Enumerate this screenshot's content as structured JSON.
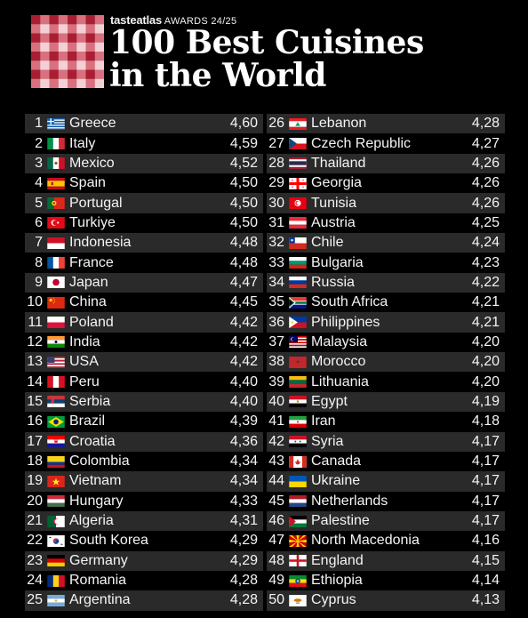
{
  "header": {
    "brand": "tasteatlas",
    "awards": "AWARDS 24/25",
    "title_line1": "100 Best Cuisines",
    "title_line2": "in the World"
  },
  "colors": {
    "background": "#000000",
    "logo_red": "#c0283a",
    "logo_pink": "#f1c2c8",
    "row_shade": "#2a2a2a"
  },
  "rankings": [
    {
      "rank": "1",
      "country": "Greece",
      "score": "4,60",
      "flag": "greece"
    },
    {
      "rank": "2",
      "country": "Italy",
      "score": "4,59",
      "flag": "italy"
    },
    {
      "rank": "3",
      "country": "Mexico",
      "score": "4,52",
      "flag": "mexico"
    },
    {
      "rank": "4",
      "country": "Spain",
      "score": "4,50",
      "flag": "spain"
    },
    {
      "rank": "5",
      "country": "Portugal",
      "score": "4,50",
      "flag": "portugal"
    },
    {
      "rank": "6",
      "country": "Turkiye",
      "score": "4,50",
      "flag": "turkiye"
    },
    {
      "rank": "7",
      "country": "Indonesia",
      "score": "4,48",
      "flag": "indonesia"
    },
    {
      "rank": "8",
      "country": "France",
      "score": "4,48",
      "flag": "france"
    },
    {
      "rank": "9",
      "country": "Japan",
      "score": "4,47",
      "flag": "japan"
    },
    {
      "rank": "10",
      "country": "China",
      "score": "4,45",
      "flag": "china"
    },
    {
      "rank": "11",
      "country": "Poland",
      "score": "4,42",
      "flag": "poland"
    },
    {
      "rank": "12",
      "country": "India",
      "score": "4,42",
      "flag": "india"
    },
    {
      "rank": "13",
      "country": "USA",
      "score": "4,42",
      "flag": "usa"
    },
    {
      "rank": "14",
      "country": "Peru",
      "score": "4,40",
      "flag": "peru"
    },
    {
      "rank": "15",
      "country": "Serbia",
      "score": "4,40",
      "flag": "serbia"
    },
    {
      "rank": "16",
      "country": "Brazil",
      "score": "4,39",
      "flag": "brazil"
    },
    {
      "rank": "17",
      "country": "Croatia",
      "score": "4,36",
      "flag": "croatia"
    },
    {
      "rank": "18",
      "country": "Colombia",
      "score": "4,34",
      "flag": "colombia"
    },
    {
      "rank": "19",
      "country": "Vietnam",
      "score": "4,34",
      "flag": "vietnam"
    },
    {
      "rank": "20",
      "country": "Hungary",
      "score": "4,33",
      "flag": "hungary"
    },
    {
      "rank": "21",
      "country": "Algeria",
      "score": "4,31",
      "flag": "algeria"
    },
    {
      "rank": "22",
      "country": "South Korea",
      "score": "4,29",
      "flag": "south-korea"
    },
    {
      "rank": "23",
      "country": "Germany",
      "score": "4,29",
      "flag": "germany"
    },
    {
      "rank": "24",
      "country": "Romania",
      "score": "4,28",
      "flag": "romania"
    },
    {
      "rank": "25",
      "country": "Argentina",
      "score": "4,28",
      "flag": "argentina"
    },
    {
      "rank": "26",
      "country": "Lebanon",
      "score": "4,28",
      "flag": "lebanon"
    },
    {
      "rank": "27",
      "country": "Czech Republic",
      "score": "4,27",
      "flag": "czech-republic"
    },
    {
      "rank": "28",
      "country": "Thailand",
      "score": "4,26",
      "flag": "thailand"
    },
    {
      "rank": "29",
      "country": "Georgia",
      "score": "4,26",
      "flag": "georgia"
    },
    {
      "rank": "30",
      "country": "Tunisia",
      "score": "4,26",
      "flag": "tunisia"
    },
    {
      "rank": "31",
      "country": "Austria",
      "score": "4,25",
      "flag": "austria"
    },
    {
      "rank": "32",
      "country": "Chile",
      "score": "4,24",
      "flag": "chile"
    },
    {
      "rank": "33",
      "country": "Bulgaria",
      "score": "4,23",
      "flag": "bulgaria"
    },
    {
      "rank": "34",
      "country": "Russia",
      "score": "4,22",
      "flag": "russia"
    },
    {
      "rank": "35",
      "country": "South Africa",
      "score": "4,21",
      "flag": "south-africa"
    },
    {
      "rank": "36",
      "country": "Philippines",
      "score": "4,21",
      "flag": "philippines"
    },
    {
      "rank": "37",
      "country": "Malaysia",
      "score": "4,20",
      "flag": "malaysia"
    },
    {
      "rank": "38",
      "country": "Morocco",
      "score": "4,20",
      "flag": "morocco"
    },
    {
      "rank": "39",
      "country": "Lithuania",
      "score": "4,20",
      "flag": "lithuania"
    },
    {
      "rank": "40",
      "country": "Egypt",
      "score": "4,19",
      "flag": "egypt"
    },
    {
      "rank": "41",
      "country": "Iran",
      "score": "4,18",
      "flag": "iran"
    },
    {
      "rank": "42",
      "country": "Syria",
      "score": "4,17",
      "flag": "syria"
    },
    {
      "rank": "43",
      "country": "Canada",
      "score": "4,17",
      "flag": "canada"
    },
    {
      "rank": "44",
      "country": "Ukraine",
      "score": "4,17",
      "flag": "ukraine"
    },
    {
      "rank": "45",
      "country": "Netherlands",
      "score": "4,17",
      "flag": "netherlands"
    },
    {
      "rank": "46",
      "country": "Palestine",
      "score": "4,17",
      "flag": "palestine"
    },
    {
      "rank": "47",
      "country": "North Macedonia",
      "score": "4,16",
      "flag": "north-macedonia"
    },
    {
      "rank": "48",
      "country": "England",
      "score": "4,15",
      "flag": "england"
    },
    {
      "rank": "49",
      "country": "Ethiopia",
      "score": "4,14",
      "flag": "ethiopia"
    },
    {
      "rank": "50",
      "country": "Cyprus",
      "score": "4,13",
      "flag": "cyprus"
    }
  ]
}
